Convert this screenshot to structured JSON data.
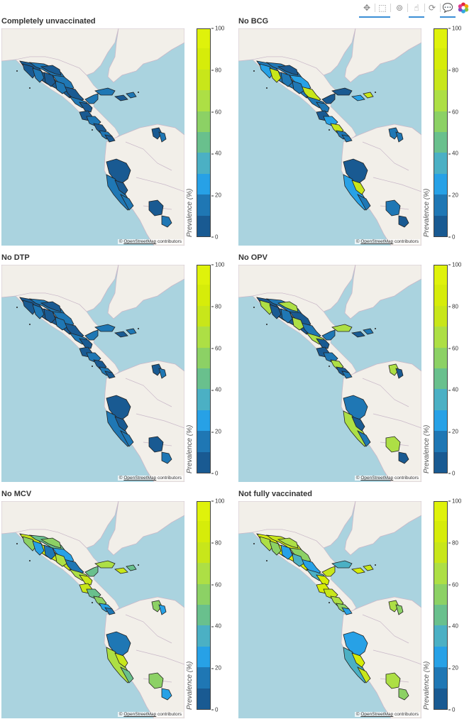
{
  "toolbar": {
    "tools": [
      {
        "name": "pan-tool",
        "icon": "pan-icon",
        "glyph": "✥",
        "active": true
      },
      {
        "name": "box-zoom-tool",
        "icon": "box-zoom-icon",
        "glyph": "⬚",
        "active": true
      },
      {
        "name": "wheel-zoom-tool",
        "icon": "wheel-zoom-icon",
        "glyph": "⊚",
        "active": false
      },
      {
        "name": "tap-tool",
        "icon": "tap-icon",
        "glyph": "☝",
        "active": true
      },
      {
        "name": "reset-tool",
        "icon": "reset-icon",
        "glyph": "⟳",
        "active": false
      },
      {
        "name": "hover-tool",
        "icon": "hover-icon",
        "glyph": "💬",
        "active": true
      }
    ],
    "logo": "bokeh-logo-icon"
  },
  "colorbar": {
    "label": "Prevalence (%)",
    "ticks": [
      "0",
      "20",
      "40",
      "60",
      "80",
      "100"
    ],
    "colors": [
      "#195a92",
      "#1f77b4",
      "#27a1e6",
      "#4bb0c4",
      "#69c08d",
      "#8cd165",
      "#addf45",
      "#c8e61a",
      "#d6ec0a",
      "#dff20b"
    ]
  },
  "attribution": {
    "prefix": "©",
    "link": "OpenStreetMap",
    "suffix": "contributors"
  },
  "map_colors": {
    "ocean": "#aad3df",
    "land": "#f2efe9",
    "land_border": "#c9b8c8",
    "region_border": "#222222"
  },
  "panels": [
    {
      "title": "Completely unvaccinated",
      "palette": [
        "#195a92",
        "#1f77b4"
      ]
    },
    {
      "title": "No BCG",
      "palette": [
        "#1f77b4",
        "#1f77b4",
        "#195a92",
        "#27a1e6",
        "#c8e61a"
      ]
    },
    {
      "title": "No DTP",
      "palette": [
        "#195a92",
        "#1f77b4"
      ]
    },
    {
      "title": "No OPV",
      "palette": [
        "#195a92",
        "#1f77b4",
        "#addf45"
      ]
    },
    {
      "title": "No MCV",
      "palette": [
        "#c8e61a",
        "#69c08d",
        "#8cd165",
        "#27a1e6",
        "#1f77b4",
        "#addf45"
      ]
    },
    {
      "title": "Not fully vaccinated",
      "palette": [
        "#d6ec0a",
        "#c8e61a",
        "#addf45",
        "#8cd165",
        "#27a1e6",
        "#4bb0c4"
      ]
    }
  ]
}
